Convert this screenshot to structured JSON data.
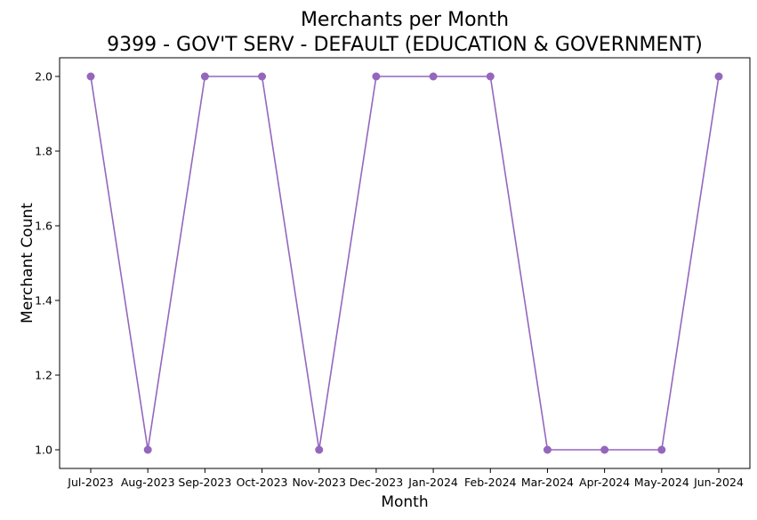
{
  "chart_data": {
    "type": "line",
    "title": "Merchants per Month",
    "subtitle": "9399 - GOV'T SERV - DEFAULT (EDUCATION & GOVERNMENT)",
    "xlabel": "Month",
    "ylabel": "Merchant Count",
    "categories": [
      "Jul-2023",
      "Aug-2023",
      "Sep-2023",
      "Oct-2023",
      "Nov-2023",
      "Dec-2023",
      "Jan-2024",
      "Feb-2024",
      "Mar-2024",
      "Apr-2024",
      "May-2024",
      "Jun-2024"
    ],
    "series": [
      {
        "values": [
          2,
          1,
          2,
          2,
          1,
          2,
          2,
          2,
          1,
          1,
          1,
          2
        ],
        "color": "#9467bd"
      }
    ],
    "ylim": [
      0.95,
      2.05
    ],
    "yticks": [
      "1.0",
      "1.2",
      "1.4",
      "1.6",
      "1.8",
      "2.0"
    ],
    "grid": false,
    "legend": "none"
  }
}
